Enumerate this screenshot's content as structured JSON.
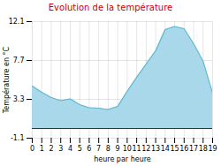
{
  "chart_data": {
    "type": "area",
    "title": "Evolution de la température",
    "title_color": "#cc0000",
    "xlabel": "heure par heure",
    "ylabel": "Température en °C",
    "x": [
      0,
      1,
      2,
      3,
      4,
      5,
      6,
      7,
      8,
      9,
      10,
      11,
      12,
      13,
      14,
      15,
      16,
      17,
      18,
      19
    ],
    "values": [
      4.8,
      4.1,
      3.5,
      3.15,
      3.35,
      2.7,
      2.35,
      2.3,
      2.15,
      2.5,
      4.2,
      5.8,
      7.3,
      8.8,
      11.2,
      11.55,
      11.3,
      9.6,
      7.6,
      4.0
    ],
    "colors": [
      "#a8d8ea",
      "#60b8cc"
    ],
    "xlim": [
      0,
      19
    ],
    "xticks": [
      0,
      1,
      2,
      3,
      4,
      5,
      6,
      7,
      8,
      9,
      10,
      11,
      12,
      13,
      14,
      15,
      16,
      17,
      18,
      19
    ],
    "ylim": [
      -1.1,
      12.1
    ],
    "yticks": [
      -1.1,
      3.3,
      7.7,
      12.1
    ],
    "grid": true
  }
}
